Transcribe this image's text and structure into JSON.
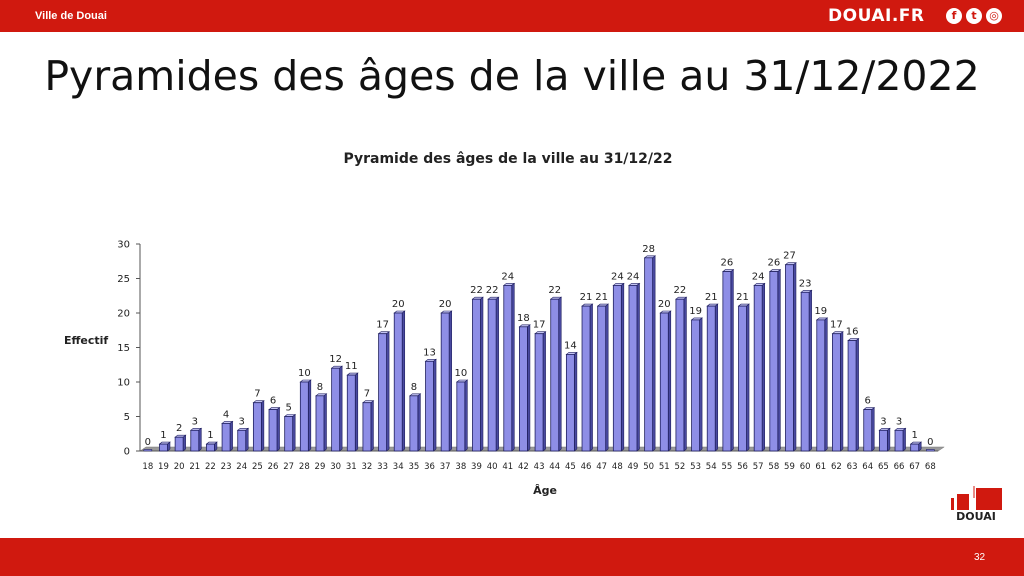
{
  "header": {
    "city_label": "Ville de Douai",
    "site_label": "DOUAI.FR",
    "social_icons": [
      "facebook-icon",
      "twitter-icon",
      "instagram-icon"
    ],
    "brand_color": "#d0190f"
  },
  "slide": {
    "title": "Pyramides des âges de la ville au 31/12/2022",
    "page_number": "32"
  },
  "logo": {
    "text": "DOUAI"
  },
  "chart_data": {
    "type": "bar",
    "title": "Pyramide des âges de la ville au 31/12/22",
    "xlabel": "Âge",
    "ylabel": "Effectif",
    "ylim": [
      0,
      30
    ],
    "yticks": [
      0,
      5,
      10,
      15,
      20,
      25,
      30
    ],
    "bar_color": "#8e8ee6",
    "categories": [
      "18",
      "19",
      "20",
      "21",
      "22",
      "23",
      "24",
      "25",
      "26",
      "27",
      "28",
      "29",
      "30",
      "31",
      "32",
      "33",
      "34",
      "35",
      "36",
      "37",
      "38",
      "39",
      "40",
      "41",
      "42",
      "43",
      "44",
      "45",
      "46",
      "47",
      "48",
      "49",
      "50",
      "51",
      "52",
      "53",
      "54",
      "55",
      "56",
      "57",
      "58",
      "59",
      "60",
      "61",
      "62",
      "63",
      "64",
      "65",
      "66",
      "67",
      "68"
    ],
    "values": [
      0,
      1,
      2,
      3,
      1,
      4,
      3,
      7,
      6,
      5,
      10,
      8,
      12,
      11,
      7,
      17,
      20,
      8,
      13,
      20,
      10,
      22,
      22,
      24,
      18,
      17,
      22,
      14,
      21,
      21,
      24,
      24,
      28,
      20,
      22,
      19,
      21,
      26,
      21,
      24,
      26,
      27,
      23,
      19,
      17,
      16,
      6,
      3,
      3,
      1,
      0
    ]
  }
}
